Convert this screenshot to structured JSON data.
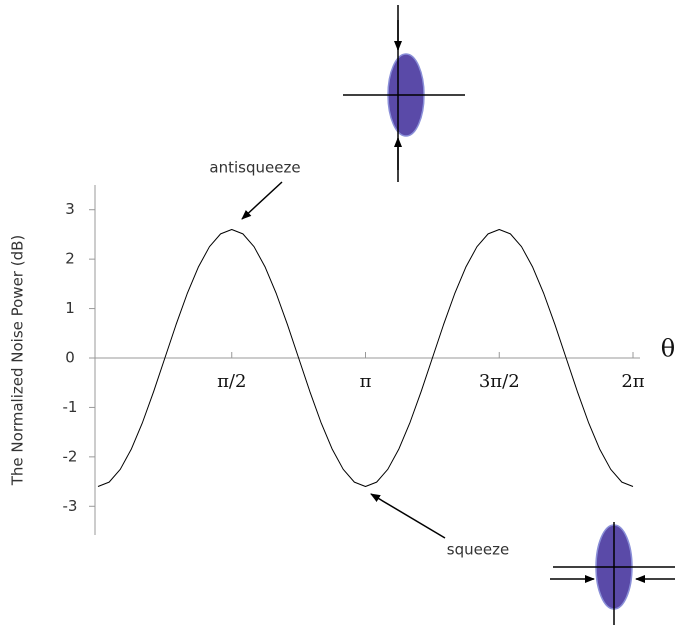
{
  "chart_data": {
    "type": "line",
    "ylabel": "The Normalized Noise Power (dB)",
    "xlabel": "θ",
    "annotations": [
      "antisqueeze",
      "squeeze"
    ],
    "x": [
      0,
      0.1309,
      0.2618,
      0.3927,
      0.5236,
      0.6545,
      0.7854,
      0.9163,
      1.0472,
      1.1781,
      1.309,
      1.4399,
      1.5708,
      1.7017,
      1.8326,
      1.9635,
      2.0944,
      2.2253,
      2.3562,
      2.4871,
      2.618,
      2.7489,
      2.8798,
      3.0107,
      3.1416,
      3.2725,
      3.4034,
      3.5343,
      3.6652,
      3.7961,
      3.927,
      4.0579,
      4.1888,
      4.3197,
      4.4506,
      4.5815,
      4.7124,
      4.8433,
      4.9742,
      5.1051,
      5.236,
      5.3669,
      5.4978,
      5.6287,
      5.7596,
      5.8905,
      6.0214,
      6.1523,
      6.2832
    ],
    "series": [
      {
        "color": "#000000",
        "values": [
          -2.6,
          -2.511,
          -2.252,
          -1.838,
          -1.3,
          -0.673,
          0,
          0.673,
          1.3,
          1.838,
          2.252,
          2.511,
          2.6,
          2.511,
          2.252,
          1.838,
          1.3,
          0.673,
          0,
          -0.673,
          -1.3,
          -1.838,
          -2.252,
          -2.511,
          -2.6,
          -2.511,
          -2.252,
          -1.838,
          -1.3,
          -0.673,
          0,
          0.673,
          1.3,
          1.838,
          2.252,
          2.511,
          2.6,
          2.511,
          2.252,
          1.838,
          1.3,
          0.673,
          0,
          -0.673,
          -1.3,
          -1.838,
          -2.252,
          -2.511,
          -2.6
        ]
      }
    ],
    "xlim": [
      0,
      6.2832
    ],
    "ylim": [
      -3.5,
      3.5
    ],
    "xticks": [
      {
        "value": 1.5708,
        "label": "π/2"
      },
      {
        "value": 3.1416,
        "label": "π"
      },
      {
        "value": 4.7124,
        "label": "3π/2"
      },
      {
        "value": 6.2832,
        "label": "2π"
      }
    ],
    "yticks": [
      3,
      2,
      1,
      0,
      -1,
      -2,
      -3
    ]
  }
}
